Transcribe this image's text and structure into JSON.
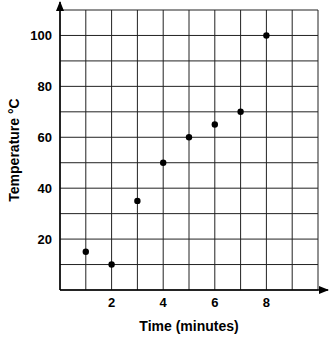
{
  "chart_data": {
    "type": "scatter",
    "x_label": "Time (minutes)",
    "y_label": "Temperature °C",
    "x": [
      1,
      2,
      3,
      4,
      5,
      6,
      7,
      8
    ],
    "values": [
      15,
      10,
      35,
      50,
      60,
      65,
      70,
      100
    ],
    "color": "#000000",
    "marker": "circle",
    "xlim": [
      0,
      10
    ],
    "ylim": [
      0,
      110
    ],
    "xticks": [
      2,
      4,
      6,
      8
    ],
    "yticks": [
      20,
      40,
      60,
      80,
      100
    ],
    "grid": true
  }
}
